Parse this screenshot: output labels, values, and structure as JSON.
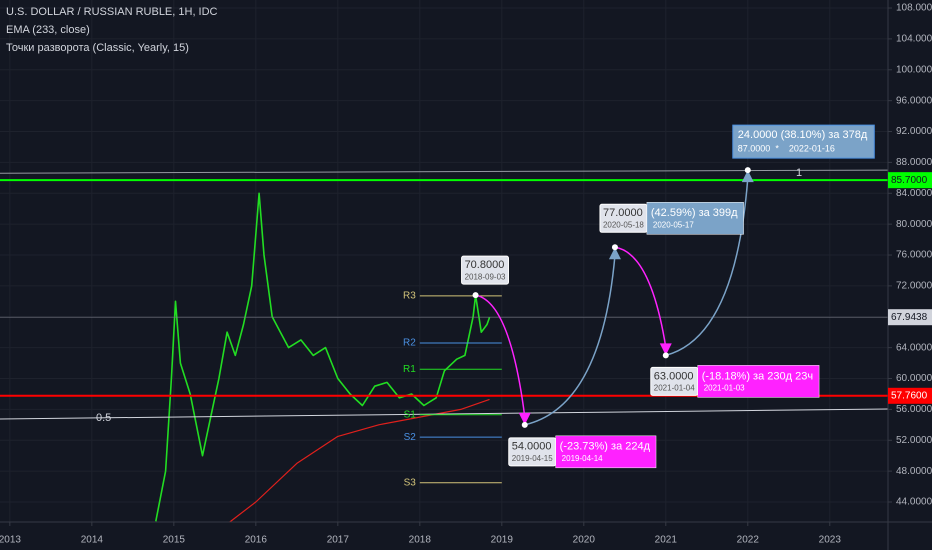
{
  "chart_data": {
    "type": "line",
    "title": "U.S. DOLLAR / RUSSIAN RUBLE, 1H, IDC",
    "indicators": [
      "EMA (233, close)",
      "Точки разворота (Classic, Yearly, 15)"
    ],
    "xlim": [
      2012.88,
      2023.71
    ],
    "xticks": [
      2013,
      2014,
      2015,
      2016,
      2017,
      2018,
      2019,
      2020,
      2021,
      2022,
      2023
    ],
    "ylim": [
      41.41,
      109.04
    ],
    "yticks": [
      {
        "value": 44,
        "label": "44.0000"
      },
      {
        "value": 48,
        "label": "48.0000"
      },
      {
        "value": 52,
        "label": "52.0000"
      },
      {
        "value": 56,
        "label": "56.0000"
      },
      {
        "value": 60,
        "label": "60.0000"
      },
      {
        "value": 64,
        "label": "64.0000"
      },
      {
        "value": 68,
        "label": "68.0000"
      },
      {
        "value": 72,
        "label": "72.0000"
      },
      {
        "value": 76,
        "label": "76.0000"
      },
      {
        "value": 80,
        "label": "80.0000"
      },
      {
        "value": 84,
        "label": "84.0000"
      },
      {
        "value": 88,
        "label": "88.0000"
      },
      {
        "value": 92,
        "label": "92.0000"
      },
      {
        "value": 96,
        "label": "96.0000"
      },
      {
        "value": 100,
        "label": "100.0000"
      },
      {
        "value": 104,
        "label": "104.0000"
      },
      {
        "value": 108,
        "label": "108.0000"
      }
    ],
    "grid": true,
    "series": [
      {
        "name": "USD/RUB",
        "color": "#22dd22",
        "x": [
          2014.78,
          2014.9,
          2014.97,
          2015.02,
          2015.08,
          2015.2,
          2015.35,
          2015.45,
          2015.55,
          2015.65,
          2015.75,
          2015.85,
          2015.95,
          2016.04,
          2016.1,
          2016.2,
          2016.3,
          2016.4,
          2016.55,
          2016.7,
          2016.85,
          2017.0,
          2017.15,
          2017.3,
          2017.45,
          2017.6,
          2017.75,
          2017.9,
          2018.05,
          2018.2,
          2018.3,
          2018.45,
          2018.55,
          2018.65,
          2018.68,
          2018.75,
          2018.82,
          2018.85
        ],
        "values": [
          41.5,
          48,
          60,
          70,
          62,
          58,
          50,
          55,
          60,
          66,
          63,
          67,
          72,
          84,
          76,
          68,
          66,
          64,
          65,
          63,
          64,
          60,
          58,
          56.5,
          59,
          59.5,
          57.5,
          58,
          56.5,
          57.5,
          61,
          62.5,
          63,
          68,
          70.8,
          66,
          67,
          67.9
        ]
      },
      {
        "name": "EMA (233, close)",
        "color": "#e0201c",
        "x": [
          2015.68,
          2016.0,
          2016.5,
          2017.0,
          2017.5,
          2018.0,
          2018.5,
          2018.85
        ],
        "values": [
          41.4,
          44,
          49,
          52.5,
          54,
          55,
          56,
          57.3
        ]
      }
    ],
    "hlines": [
      {
        "value": 85.7,
        "value_label": "85.7000",
        "color": "#00ff00"
      },
      {
        "value": 57.76,
        "value_label": "57.7600",
        "color": "#ff0000"
      }
    ],
    "last_price": {
      "value": 67.9438,
      "value_label": "67.9438"
    },
    "trendlines": [
      {
        "label": "0.5",
        "x": [
          2012.88,
          2023.71
        ],
        "values": [
          54.76,
          56.05
        ],
        "color": "#d1d4dc"
      },
      {
        "label": "1",
        "x": [
          2012.88,
          2023.71
        ],
        "values": [
          86.6,
          87.0
        ],
        "color": "#9598a1"
      }
    ],
    "pivots": {
      "x": [
        2018.0,
        2019.0
      ],
      "levels": [
        {
          "name": "R3",
          "value": 70.7,
          "color": "#d3c47a"
        },
        {
          "name": "R2",
          "value": 64.6,
          "color": "#4a90e2"
        },
        {
          "name": "R1",
          "value": 61.2,
          "color": "#22dd22"
        },
        {
          "name": "S1",
          "value": 55.3,
          "color": "#22dd22"
        },
        {
          "name": "S2",
          "value": 52.4,
          "color": "#4a90e2"
        },
        {
          "name": "S3",
          "value": 46.5,
          "color": "#d3c47a"
        }
      ]
    },
    "projection": {
      "x": [
        2018.68,
        2019.28,
        2020.38,
        2021.0,
        2022.0
      ],
      "values": [
        70.8,
        54,
        77,
        63,
        87
      ],
      "value_labels": [
        "70.8000",
        "54.0000",
        "77.0000",
        "63.0000",
        "87.0000"
      ],
      "dates": [
        "2018-09-03",
        "2019-04-15",
        "2020-05-18",
        "2021-01-04",
        "2022-01-16"
      ],
      "changes": [
        null,
        "(-23.73%) за 224д",
        "(42.59%) за 399д",
        "(-18.18%) за 230д 23ч",
        "24.0000 (38.10%) за 378д"
      ],
      "end_dates": [
        null,
        "2019-04-14",
        "2020-05-17",
        "2021-01-03",
        "*"
      ],
      "colors": [
        null,
        "#ff22ff",
        "#7ba3c8",
        "#ff22ff",
        "#7ba3c8"
      ]
    }
  }
}
